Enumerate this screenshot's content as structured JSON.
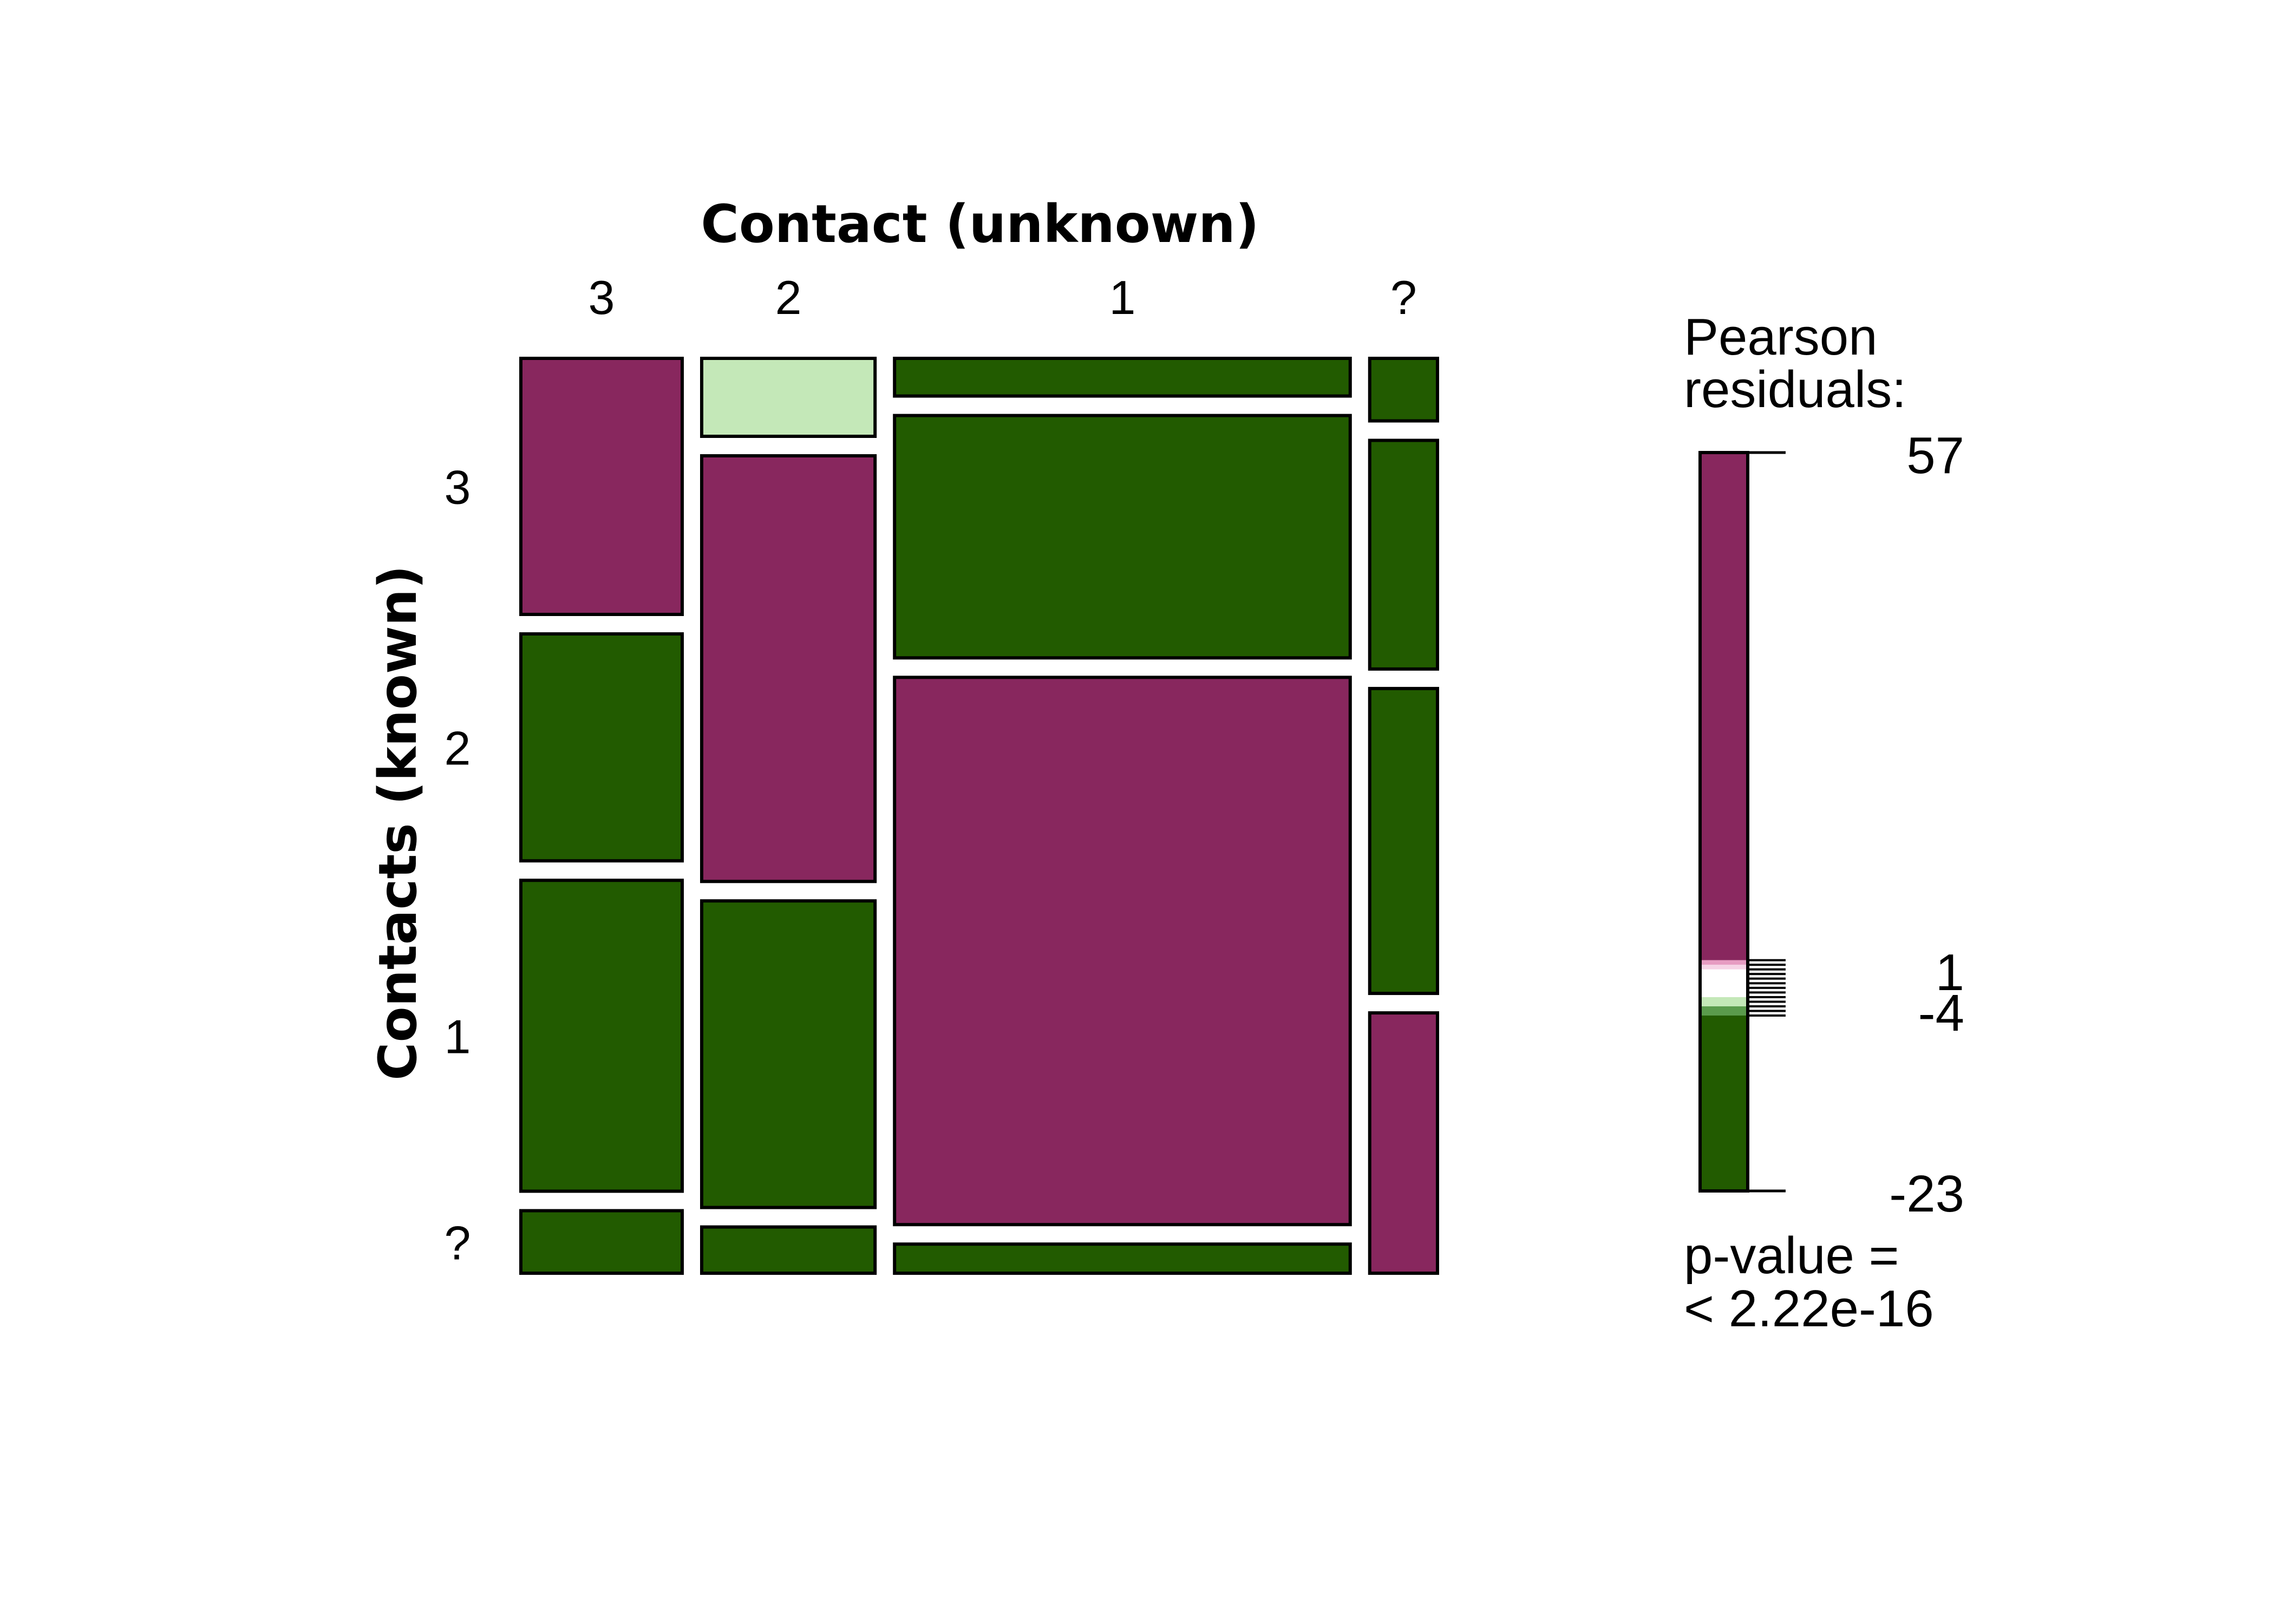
{
  "chart_data": {
    "type": "mosaic",
    "xlabel": "Contact (unknown)",
    "ylabel": "Contacts (known)",
    "x_categories": [
      "3",
      "2",
      "1",
      "?"
    ],
    "y_categories": [
      "3",
      "2",
      "1",
      "?"
    ],
    "column_widths": [
      0.188,
      0.202,
      0.531,
      0.079
    ],
    "columns": [
      {
        "label": "3",
        "cells": [
          {
            "row": "3",
            "share": 0.299,
            "residual": "positive"
          },
          {
            "row": "2",
            "share": 0.265,
            "residual": "negative"
          },
          {
            "row": "1",
            "share": 0.363,
            "residual": "negative"
          },
          {
            "row": "?",
            "share": 0.073,
            "residual": "negative"
          }
        ]
      },
      {
        "label": "2",
        "cells": [
          {
            "row": "3",
            "share": 0.091,
            "residual": "weak-negative"
          },
          {
            "row": "2",
            "share": 0.497,
            "residual": "positive"
          },
          {
            "row": "1",
            "share": 0.358,
            "residual": "negative"
          },
          {
            "row": "?",
            "share": 0.054,
            "residual": "negative"
          }
        ]
      },
      {
        "label": "1",
        "cells": [
          {
            "row": "3",
            "share": 0.044,
            "residual": "negative"
          },
          {
            "row": "2",
            "share": 0.283,
            "residual": "negative"
          },
          {
            "row": "1",
            "share": 0.639,
            "residual": "positive"
          },
          {
            "row": "?",
            "share": 0.034,
            "residual": "negative"
          }
        ]
      },
      {
        "label": "?",
        "cells": [
          {
            "row": "3",
            "share": 0.073,
            "residual": "negative"
          },
          {
            "row": "2",
            "share": 0.267,
            "residual": "negative"
          },
          {
            "row": "1",
            "share": 0.356,
            "residual": "negative"
          },
          {
            "row": "?",
            "share": 0.304,
            "residual": "positive"
          }
        ]
      }
    ],
    "legend": {
      "title_line1": "Pearson",
      "title_line2": "residuals:",
      "max": 57,
      "min": -23,
      "tick_labels": [
        "57",
        "1",
        "-4",
        "-23"
      ],
      "tick_values": [
        57,
        1,
        -4,
        -23
      ],
      "pvalue_line1": "p-value =",
      "pvalue_line2": "< 2.22e-16"
    },
    "colors": {
      "positive": "#88275e",
      "weak-negative": "#c4e8b8",
      "negative": "#225b00",
      "outline": "#000000"
    }
  }
}
